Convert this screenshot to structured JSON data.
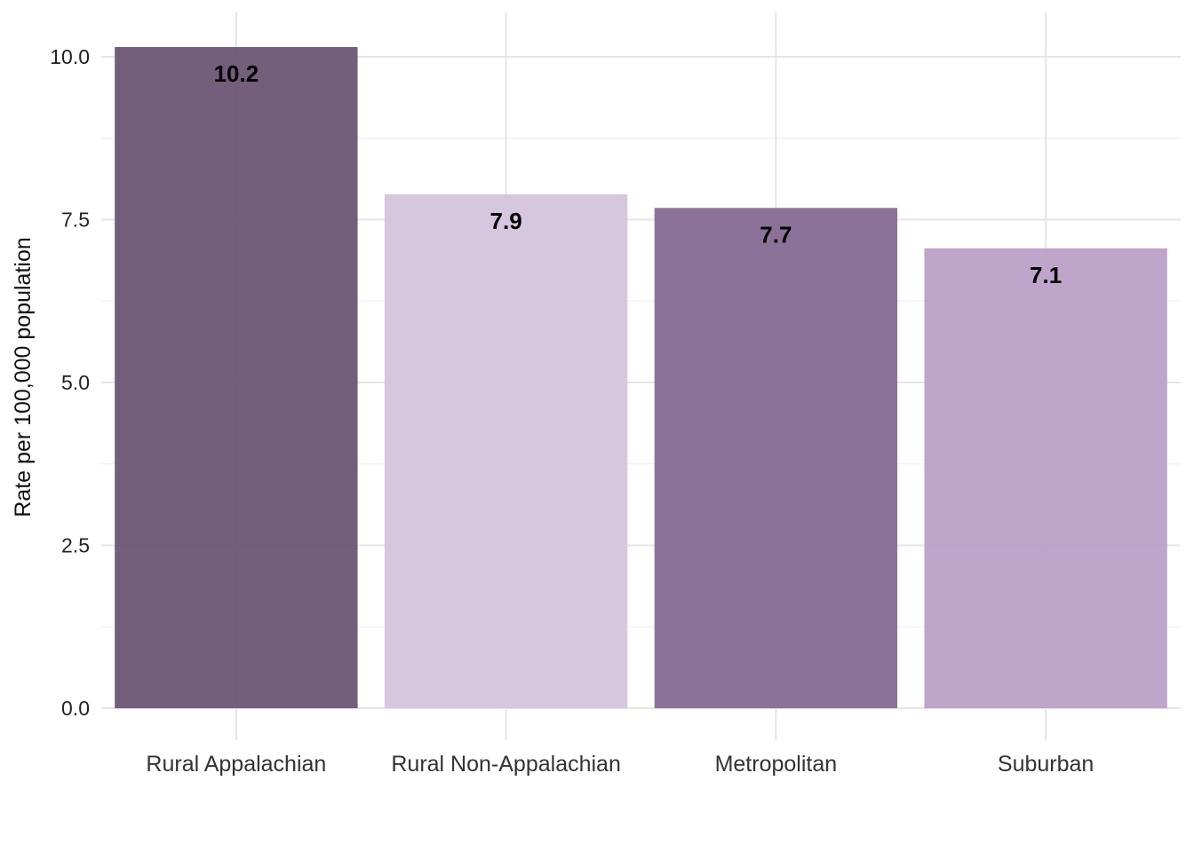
{
  "chart_data": {
    "type": "bar",
    "categories": [
      "Rural Appalachian",
      "Rural Non-Appalachian",
      "Metropolitan",
      "Suburban"
    ],
    "values": [
      10.15,
      7.89,
      7.68,
      7.06
    ],
    "value_labels": [
      "10.2",
      "7.9",
      "7.7",
      "7.1"
    ],
    "bar_colors": [
      "#6b5674",
      "#d5c4dc",
      "#866a94",
      "#bca0c7"
    ],
    "bar_opacity": 0.95,
    "title": "",
    "xlabel": "",
    "ylabel": "Rate per 100,000 population",
    "ylim": [
      0,
      10.2
    ],
    "yticks": [
      0,
      2.5,
      5,
      7.5,
      10
    ],
    "ytick_labels": [
      "0.0",
      "2.5",
      "5.0",
      "7.5",
      "10.0"
    ],
    "grid": true,
    "legend": "none"
  }
}
